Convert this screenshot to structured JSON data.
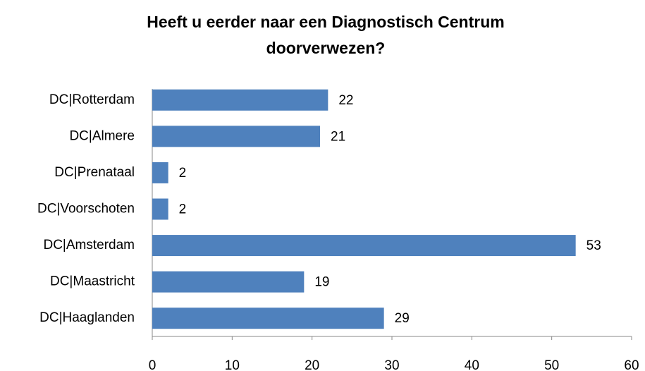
{
  "chart_data": {
    "type": "bar",
    "orientation": "horizontal",
    "title": [
      "Heeft u eerder naar een Diagnostisch Centrum",
      "doorverwezen?"
    ],
    "categories": [
      "DC|Rotterdam",
      "DC|Almere",
      "DC|Prenataal",
      "DC|Voorschoten",
      "DC|Amsterdam",
      "DC|Maastricht",
      "DC|Haaglanden"
    ],
    "values": [
      22,
      21,
      2,
      2,
      53,
      19,
      29
    ],
    "color": "#4f81bd",
    "xlim": [
      0,
      60
    ],
    "xticks": [
      0,
      10,
      20,
      30,
      40,
      50,
      60
    ],
    "grid": false
  }
}
